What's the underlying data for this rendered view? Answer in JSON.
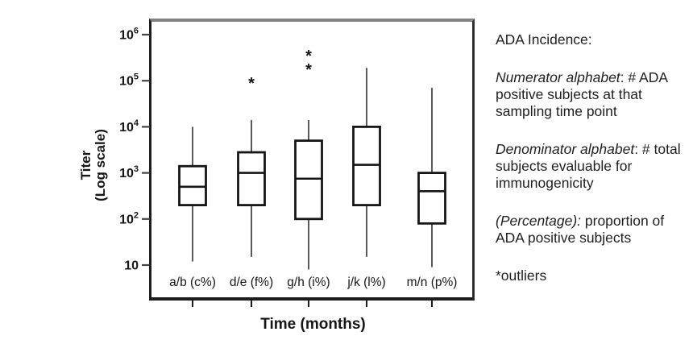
{
  "figure": {
    "y_axis_title_line1": "Titer",
    "y_axis_title_line2": "(Log scale)",
    "x_axis_title": "Time (months)"
  },
  "legend": {
    "title": "ADA Incidence:",
    "items": [
      {
        "italic": "Numerator alphabet",
        "rest": ": # ADA positive  subjects at that sampling time point"
      },
      {
        "italic": "Denominator alphabet",
        "rest": ": # total subjects evaluable for immunogenicity"
      },
      {
        "italic": "(Percentage):",
        "rest": " proportion of ADA positive subjects"
      }
    ],
    "outlier_note": "*outliers"
  },
  "chart_data": {
    "type": "boxplot",
    "scale": "log10",
    "title": "",
    "xlabel": "Time (months)",
    "ylabel": "Titer (Log scale)",
    "ylim": [
      2,
      2000000
    ],
    "grid": false,
    "legend_position": "right",
    "outlier_marker": "*",
    "whisker_caps": false,
    "y_ticks": [
      {
        "base": "10",
        "exp": "",
        "value": 10
      },
      {
        "base": "10",
        "exp": "2",
        "value": 100
      },
      {
        "base": "10",
        "exp": "3",
        "value": 1000
      },
      {
        "base": "10",
        "exp": "4",
        "value": 10000
      },
      {
        "base": "10",
        "exp": "5",
        "value": 100000
      },
      {
        "base": "10",
        "exp": "6",
        "value": 1000000
      }
    ],
    "categories": [
      "a/b (c%)",
      "d/e (f%)",
      "g/h (i%)",
      "j/k (l%)",
      "m/n (p%)"
    ],
    "boxes": [
      {
        "category": "a/b (c%)",
        "whisker_low": 12,
        "q1": 200,
        "median": 500,
        "q3": 1400,
        "whisker_high": 10000,
        "outliers": []
      },
      {
        "category": "d/e (f%)",
        "whisker_low": 15,
        "q1": 200,
        "median": 1000,
        "q3": 2800,
        "whisker_high": 14000,
        "outliers": [
          100000
        ]
      },
      {
        "category": "g/h (i%)",
        "whisker_low": 8,
        "q1": 100,
        "median": 750,
        "q3": 5000,
        "whisker_high": 14000,
        "outliers": [
          200000,
          400000
        ]
      },
      {
        "category": "j/k (l%)",
        "whisker_low": 15,
        "q1": 200,
        "median": 1500,
        "q3": 10000,
        "whisker_high": 190000,
        "outliers": []
      },
      {
        "category": "m/n (p%)",
        "whisker_low": 9,
        "q1": 80,
        "median": 400,
        "q3": 1000,
        "whisker_high": 70000,
        "outliers": []
      }
    ],
    "colors": {
      "box_stroke": "#151515",
      "whisker_stroke": "#3c3c3c",
      "tick_stroke": "#444444",
      "text": "#161616",
      "frame_top": "#828282",
      "frame_dark": "#1d1d1d",
      "background": "#ffffff"
    }
  }
}
